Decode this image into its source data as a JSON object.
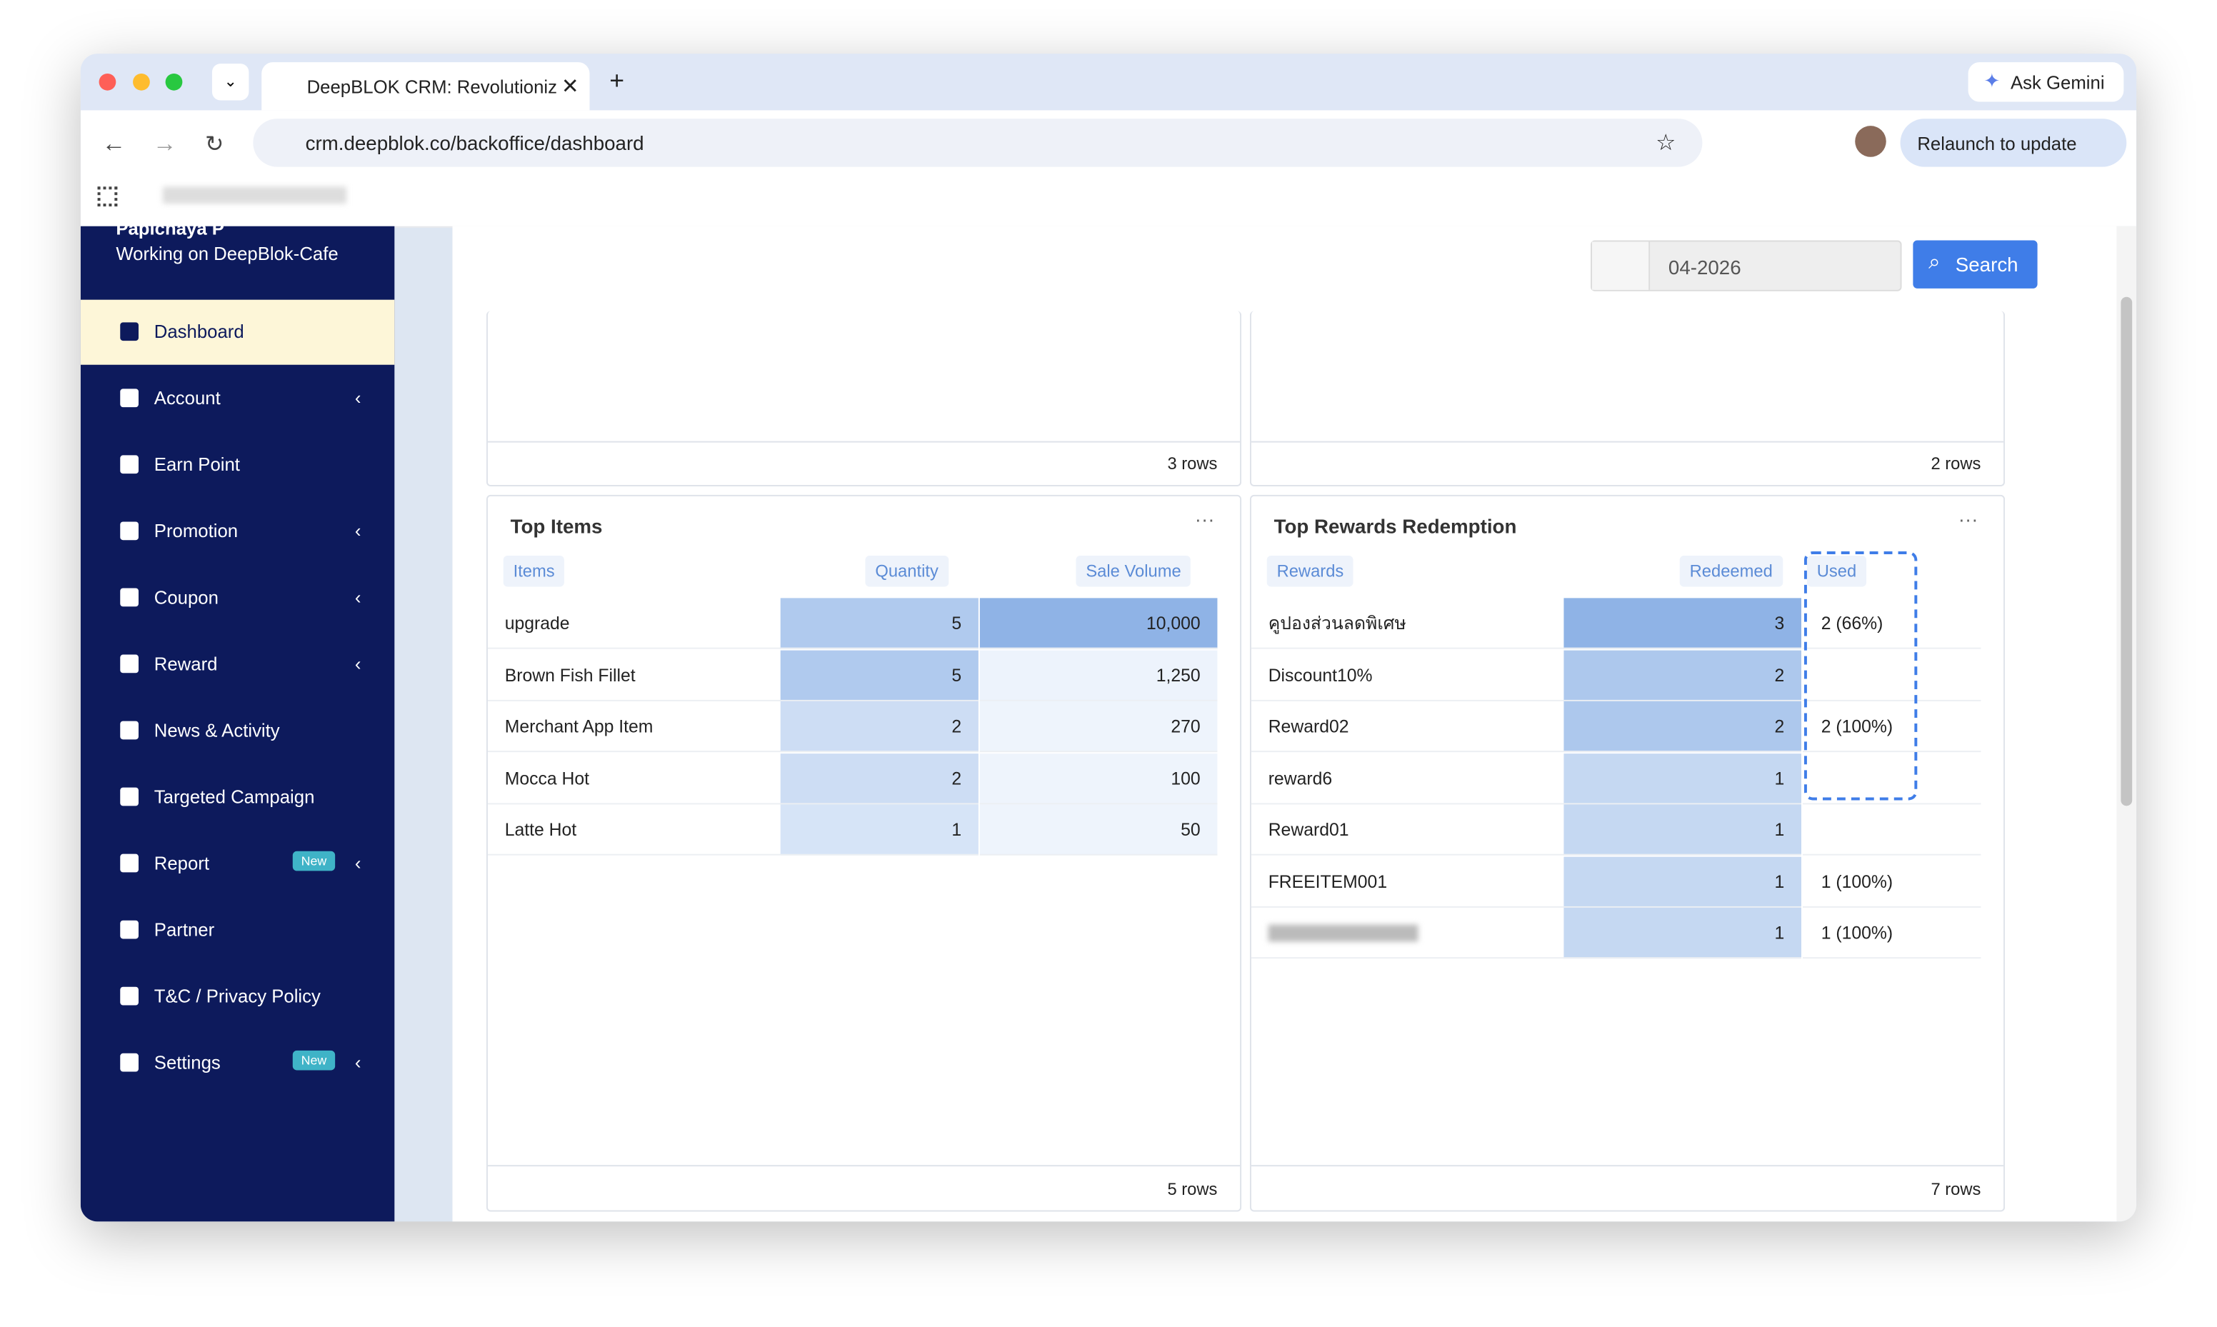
{
  "browser": {
    "tab_title": "DeepBLOK CRM: Revolutioniz",
    "url": "crm.deepblok.co/backoffice/dashboard",
    "ask_gemini": "Ask Gemini",
    "relaunch": "Relaunch to update"
  },
  "sidebar": {
    "user": "Papichaya P",
    "workspace": "Working on DeepBlok-Cafe",
    "menu": [
      {
        "label": "Dashboard"
      },
      {
        "label": "Account"
      },
      {
        "label": "Earn Point"
      },
      {
        "label": "Promotion"
      },
      {
        "label": "Coupon"
      },
      {
        "label": "Reward"
      },
      {
        "label": "News & Activity"
      },
      {
        "label": "Targeted Campaign"
      },
      {
        "label": "Report",
        "badge": "New"
      },
      {
        "label": "Partner"
      },
      {
        "label": "T&C / Privacy Policy"
      },
      {
        "label": "Settings",
        "badge": "New"
      }
    ]
  },
  "toolbar": {
    "date": "04-2026",
    "search": "Search"
  },
  "upper_panels": [
    {
      "footer": "3 rows"
    },
    {
      "footer": "2 rows"
    }
  ],
  "top_items": {
    "title": "Top Items",
    "columns": [
      "Items",
      "Quantity",
      "Sale Volume"
    ],
    "rows": [
      [
        "upgrade",
        "5",
        "10,000"
      ],
      [
        "Brown Fish Fillet",
        "5",
        "1,250"
      ],
      [
        "Merchant App Item",
        "2",
        "270"
      ],
      [
        "Mocca Hot",
        "2",
        "100"
      ],
      [
        "Latte Hot",
        "1",
        "50"
      ]
    ],
    "footer": "5 rows"
  },
  "top_rewards": {
    "title": "Top Rewards Redemption",
    "columns": [
      "Rewards",
      "Redeemed",
      "Used"
    ],
    "rows": [
      {
        "name": "คูปองส่วนลดพิเศษ",
        "redeemed": "3",
        "used": "2 (66%)"
      },
      {
        "name": "Discount10%",
        "redeemed": "2"
      },
      {
        "name": "Reward02",
        "redeemed": "2",
        "used": "2 (100%)"
      },
      {
        "name": "reward6",
        "redeemed": "1"
      },
      {
        "name": "Reward01",
        "redeemed": "1"
      },
      {
        "name": "FREEITEM001",
        "redeemed": "1",
        "used": "1 (100%)"
      },
      {
        "redeemed": "1",
        "used": "1 (100%)"
      }
    ],
    "footer": "7 rows"
  }
}
